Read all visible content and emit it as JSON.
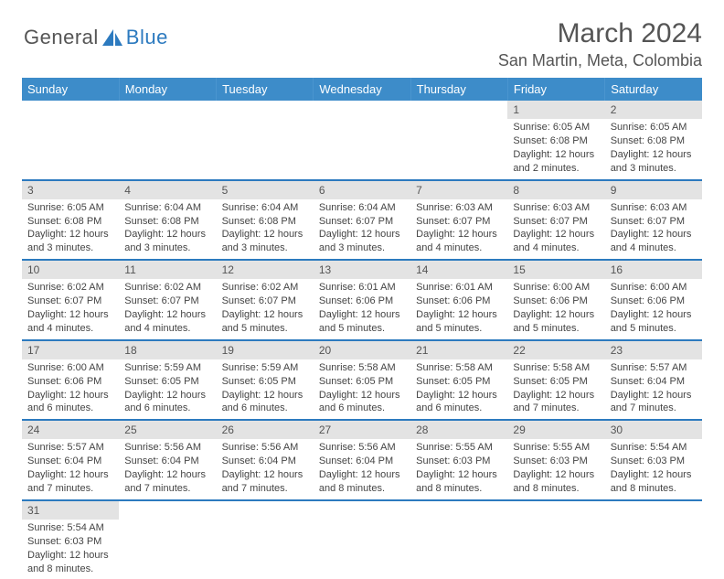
{
  "logo": {
    "general": "General",
    "blue": "Blue"
  },
  "title": "March 2024",
  "location": "San Martin, Meta, Colombia",
  "colors": {
    "header_bg": "#3d8cc9",
    "accent": "#2c7abf",
    "daynum_bg": "#e3e3e3",
    "text": "#444444"
  },
  "dayHeaders": [
    "Sunday",
    "Monday",
    "Tuesday",
    "Wednesday",
    "Thursday",
    "Friday",
    "Saturday"
  ],
  "weeks": [
    [
      null,
      null,
      null,
      null,
      null,
      {
        "num": "1",
        "sunrise": "Sunrise: 6:05 AM",
        "sunset": "Sunset: 6:08 PM",
        "daylight": "Daylight: 12 hours and 2 minutes."
      },
      {
        "num": "2",
        "sunrise": "Sunrise: 6:05 AM",
        "sunset": "Sunset: 6:08 PM",
        "daylight": "Daylight: 12 hours and 3 minutes."
      }
    ],
    [
      {
        "num": "3",
        "sunrise": "Sunrise: 6:05 AM",
        "sunset": "Sunset: 6:08 PM",
        "daylight": "Daylight: 12 hours and 3 minutes."
      },
      {
        "num": "4",
        "sunrise": "Sunrise: 6:04 AM",
        "sunset": "Sunset: 6:08 PM",
        "daylight": "Daylight: 12 hours and 3 minutes."
      },
      {
        "num": "5",
        "sunrise": "Sunrise: 6:04 AM",
        "sunset": "Sunset: 6:08 PM",
        "daylight": "Daylight: 12 hours and 3 minutes."
      },
      {
        "num": "6",
        "sunrise": "Sunrise: 6:04 AM",
        "sunset": "Sunset: 6:07 PM",
        "daylight": "Daylight: 12 hours and 3 minutes."
      },
      {
        "num": "7",
        "sunrise": "Sunrise: 6:03 AM",
        "sunset": "Sunset: 6:07 PM",
        "daylight": "Daylight: 12 hours and 4 minutes."
      },
      {
        "num": "8",
        "sunrise": "Sunrise: 6:03 AM",
        "sunset": "Sunset: 6:07 PM",
        "daylight": "Daylight: 12 hours and 4 minutes."
      },
      {
        "num": "9",
        "sunrise": "Sunrise: 6:03 AM",
        "sunset": "Sunset: 6:07 PM",
        "daylight": "Daylight: 12 hours and 4 minutes."
      }
    ],
    [
      {
        "num": "10",
        "sunrise": "Sunrise: 6:02 AM",
        "sunset": "Sunset: 6:07 PM",
        "daylight": "Daylight: 12 hours and 4 minutes."
      },
      {
        "num": "11",
        "sunrise": "Sunrise: 6:02 AM",
        "sunset": "Sunset: 6:07 PM",
        "daylight": "Daylight: 12 hours and 4 minutes."
      },
      {
        "num": "12",
        "sunrise": "Sunrise: 6:02 AM",
        "sunset": "Sunset: 6:07 PM",
        "daylight": "Daylight: 12 hours and 5 minutes."
      },
      {
        "num": "13",
        "sunrise": "Sunrise: 6:01 AM",
        "sunset": "Sunset: 6:06 PM",
        "daylight": "Daylight: 12 hours and 5 minutes."
      },
      {
        "num": "14",
        "sunrise": "Sunrise: 6:01 AM",
        "sunset": "Sunset: 6:06 PM",
        "daylight": "Daylight: 12 hours and 5 minutes."
      },
      {
        "num": "15",
        "sunrise": "Sunrise: 6:00 AM",
        "sunset": "Sunset: 6:06 PM",
        "daylight": "Daylight: 12 hours and 5 minutes."
      },
      {
        "num": "16",
        "sunrise": "Sunrise: 6:00 AM",
        "sunset": "Sunset: 6:06 PM",
        "daylight": "Daylight: 12 hours and 5 minutes."
      }
    ],
    [
      {
        "num": "17",
        "sunrise": "Sunrise: 6:00 AM",
        "sunset": "Sunset: 6:06 PM",
        "daylight": "Daylight: 12 hours and 6 minutes."
      },
      {
        "num": "18",
        "sunrise": "Sunrise: 5:59 AM",
        "sunset": "Sunset: 6:05 PM",
        "daylight": "Daylight: 12 hours and 6 minutes."
      },
      {
        "num": "19",
        "sunrise": "Sunrise: 5:59 AM",
        "sunset": "Sunset: 6:05 PM",
        "daylight": "Daylight: 12 hours and 6 minutes."
      },
      {
        "num": "20",
        "sunrise": "Sunrise: 5:58 AM",
        "sunset": "Sunset: 6:05 PM",
        "daylight": "Daylight: 12 hours and 6 minutes."
      },
      {
        "num": "21",
        "sunrise": "Sunrise: 5:58 AM",
        "sunset": "Sunset: 6:05 PM",
        "daylight": "Daylight: 12 hours and 6 minutes."
      },
      {
        "num": "22",
        "sunrise": "Sunrise: 5:58 AM",
        "sunset": "Sunset: 6:05 PM",
        "daylight": "Daylight: 12 hours and 7 minutes."
      },
      {
        "num": "23",
        "sunrise": "Sunrise: 5:57 AM",
        "sunset": "Sunset: 6:04 PM",
        "daylight": "Daylight: 12 hours and 7 minutes."
      }
    ],
    [
      {
        "num": "24",
        "sunrise": "Sunrise: 5:57 AM",
        "sunset": "Sunset: 6:04 PM",
        "daylight": "Daylight: 12 hours and 7 minutes."
      },
      {
        "num": "25",
        "sunrise": "Sunrise: 5:56 AM",
        "sunset": "Sunset: 6:04 PM",
        "daylight": "Daylight: 12 hours and 7 minutes."
      },
      {
        "num": "26",
        "sunrise": "Sunrise: 5:56 AM",
        "sunset": "Sunset: 6:04 PM",
        "daylight": "Daylight: 12 hours and 7 minutes."
      },
      {
        "num": "27",
        "sunrise": "Sunrise: 5:56 AM",
        "sunset": "Sunset: 6:04 PM",
        "daylight": "Daylight: 12 hours and 8 minutes."
      },
      {
        "num": "28",
        "sunrise": "Sunrise: 5:55 AM",
        "sunset": "Sunset: 6:03 PM",
        "daylight": "Daylight: 12 hours and 8 minutes."
      },
      {
        "num": "29",
        "sunrise": "Sunrise: 5:55 AM",
        "sunset": "Sunset: 6:03 PM",
        "daylight": "Daylight: 12 hours and 8 minutes."
      },
      {
        "num": "30",
        "sunrise": "Sunrise: 5:54 AM",
        "sunset": "Sunset: 6:03 PM",
        "daylight": "Daylight: 12 hours and 8 minutes."
      }
    ],
    [
      {
        "num": "31",
        "sunrise": "Sunrise: 5:54 AM",
        "sunset": "Sunset: 6:03 PM",
        "daylight": "Daylight: 12 hours and 8 minutes."
      },
      null,
      null,
      null,
      null,
      null,
      null
    ]
  ]
}
